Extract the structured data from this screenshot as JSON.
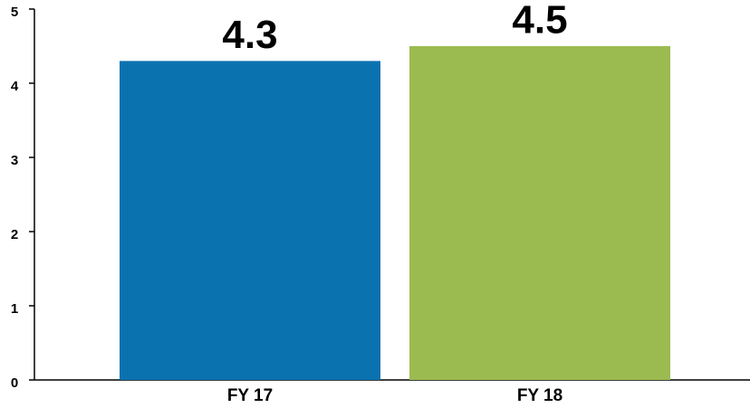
{
  "chart_data": {
    "type": "bar",
    "categories": [
      "FY 17",
      "FY 18"
    ],
    "values": [
      4.3,
      4.5
    ],
    "colors": [
      "#0b72b0",
      "#9bbb51"
    ],
    "ylim": [
      0,
      5
    ],
    "yticks": [
      0,
      1,
      2,
      3,
      4,
      5
    ],
    "grid": false
  }
}
